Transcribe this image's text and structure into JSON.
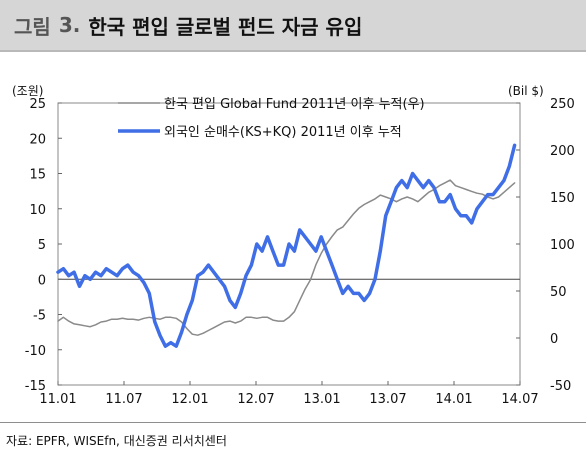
{
  "header": {
    "figure_label": "그림",
    "figure_number": "3.",
    "title": "한국 편입 글로벌 펀드 자금 유입"
  },
  "source": "자료: EPFR, WISEfn, 대신증권 리서치센터",
  "chart_data": {
    "type": "line",
    "xlabel": "",
    "y_left": {
      "label": "(조원)",
      "range": [
        -15,
        25
      ],
      "ticks": [
        25,
        20,
        15,
        10,
        5,
        0,
        -5,
        -10,
        -15
      ]
    },
    "y_right": {
      "label": "(Bil $)",
      "range": [
        -50,
        250
      ],
      "ticks": [
        250,
        200,
        150,
        100,
        50,
        0,
        -50
      ]
    },
    "x_ticks": [
      "11.01",
      "11.07",
      "12.01",
      "12.07",
      "13.01",
      "13.07",
      "14.01",
      "14.07"
    ],
    "x_range": [
      0,
      43
    ],
    "legend_position": "top-left",
    "series": [
      {
        "name": "한국 편입 Global Fund 2011년 이후 누적(우)",
        "axis": "right",
        "color": "#8a8a8a",
        "width": 1.5,
        "x": [
          0,
          0.5,
          1,
          1.5,
          2,
          2.5,
          3,
          3.5,
          4,
          4.5,
          5,
          5.5,
          6,
          6.5,
          7,
          7.5,
          8,
          8.5,
          9,
          9.5,
          10,
          10.5,
          11,
          11.5,
          12,
          12.5,
          13,
          13.5,
          14,
          14.5,
          15,
          15.5,
          16,
          16.5,
          17,
          17.5,
          18,
          18.5,
          19,
          19.5,
          20,
          20.5,
          21,
          21.5,
          22,
          22.5,
          23,
          23.5,
          24,
          24.5,
          25,
          25.5,
          26,
          26.5,
          27,
          27.5,
          28,
          28.5,
          29,
          29.5,
          30,
          30.5,
          31,
          31.5,
          32,
          32.5,
          33,
          33.5,
          34,
          34.5,
          35,
          35.5,
          36,
          36.5,
          37,
          37.5,
          38,
          38.5,
          39,
          39.5,
          40,
          40.5,
          41,
          41.5,
          42,
          42.5
        ],
        "y": [
          18,
          22,
          18,
          15,
          14,
          13,
          12,
          14,
          17,
          18,
          20,
          20,
          21,
          20,
          20,
          19,
          21,
          22,
          21,
          20,
          22,
          22,
          21,
          17,
          10,
          4,
          3,
          5,
          8,
          11,
          14,
          17,
          18,
          16,
          18,
          22,
          22,
          21,
          22,
          22,
          19,
          18,
          18,
          22,
          28,
          40,
          52,
          62,
          78,
          90,
          100,
          108,
          115,
          118,
          125,
          132,
          138,
          142,
          145,
          148,
          152,
          150,
          148,
          145,
          148,
          150,
          148,
          145,
          150,
          155,
          158,
          162,
          165,
          168,
          162,
          160,
          158,
          156,
          154,
          153,
          150,
          148,
          150,
          155,
          160,
          165
        ]
      },
      {
        "name": "외국인 순매수(KS+KQ) 2011년 이후 누적",
        "axis": "left",
        "color": "#3f6ee6",
        "width": 3.5,
        "x": [
          0,
          0.5,
          1,
          1.5,
          2,
          2.5,
          3,
          3.5,
          4,
          4.5,
          5,
          5.5,
          6,
          6.5,
          7,
          7.5,
          8,
          8.5,
          9,
          9.5,
          10,
          10.5,
          11,
          11.5,
          12,
          12.5,
          13,
          13.5,
          14,
          14.5,
          15,
          15.5,
          16,
          16.5,
          17,
          17.5,
          18,
          18.5,
          19,
          19.5,
          20,
          20.5,
          21,
          21.5,
          22,
          22.5,
          23,
          23.5,
          24,
          24.5,
          25,
          25.5,
          26,
          26.5,
          27,
          27.5,
          28,
          28.5,
          29,
          29.5,
          30,
          30.5,
          31,
          31.5,
          32,
          32.5,
          33,
          33.5,
          34,
          34.5,
          35,
          35.5,
          36,
          36.5,
          37,
          37.5,
          38,
          38.5,
          39,
          39.5,
          40,
          40.5,
          41,
          41.5,
          42,
          42.5
        ],
        "y": [
          1,
          1.5,
          0.5,
          1,
          -1,
          0.5,
          0,
          1,
          0.5,
          1.5,
          1,
          0.5,
          1.5,
          2,
          1,
          0.5,
          -0.5,
          -2,
          -6,
          -8,
          -9.5,
          -9,
          -9.5,
          -7.5,
          -5,
          -3,
          0.5,
          1,
          2,
          1,
          0,
          -1,
          -3,
          -4,
          -2,
          0.5,
          2,
          5,
          4,
          6,
          4,
          2,
          2,
          5,
          4,
          7,
          6,
          5,
          4,
          6,
          4,
          2,
          0,
          -2,
          -1,
          -2,
          -2,
          -3,
          -2,
          0,
          4,
          9,
          11,
          13,
          14,
          13,
          15,
          14,
          13,
          14,
          13,
          11,
          11,
          12,
          10,
          9,
          9,
          8,
          10,
          11,
          12,
          12,
          13,
          14,
          16,
          19
        ]
      }
    ]
  }
}
